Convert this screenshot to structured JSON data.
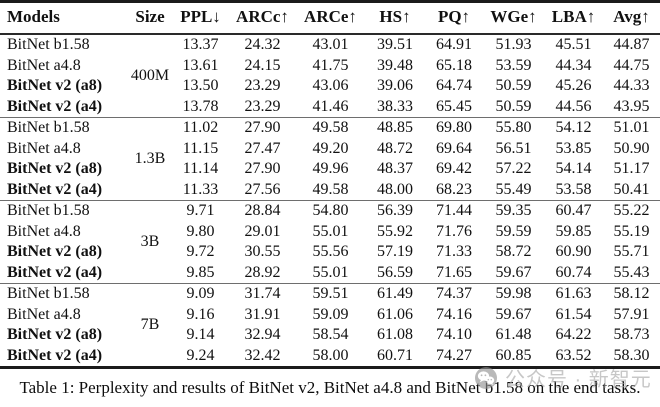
{
  "table": {
    "caption": "Table 1: Perplexity and results of BitNet v2, BitNet a4.8 and BitNet b1.58 on the end tasks.",
    "columns": [
      "Models",
      "Size",
      "PPL↓",
      "ARCc↑",
      "ARCe↑",
      "HS↑",
      "PQ↑",
      "WGe↑",
      "LBA↑",
      "Avg↑"
    ],
    "groups": [
      {
        "size": "400M",
        "rows": [
          {
            "model": "BitNet b1.58",
            "bold": false,
            "values": [
              "13.37",
              "24.32",
              "43.01",
              "39.51",
              "64.91",
              "51.93",
              "45.51",
              "44.87"
            ]
          },
          {
            "model": "BitNet a4.8",
            "bold": false,
            "values": [
              "13.61",
              "24.15",
              "41.75",
              "39.48",
              "65.18",
              "53.59",
              "44.34",
              "44.75"
            ]
          },
          {
            "model": "BitNet v2 (a8)",
            "bold": true,
            "values": [
              "13.50",
              "23.29",
              "43.06",
              "39.06",
              "64.74",
              "50.59",
              "45.26",
              "44.33"
            ]
          },
          {
            "model": "BitNet v2 (a4)",
            "bold": true,
            "values": [
              "13.78",
              "23.29",
              "41.46",
              "38.33",
              "65.45",
              "50.59",
              "44.56",
              "43.95"
            ]
          }
        ]
      },
      {
        "size": "1.3B",
        "rows": [
          {
            "model": "BitNet b1.58",
            "bold": false,
            "values": [
              "11.02",
              "27.90",
              "49.58",
              "48.85",
              "69.80",
              "55.80",
              "54.12",
              "51.01"
            ]
          },
          {
            "model": "BitNet a4.8",
            "bold": false,
            "values": [
              "11.15",
              "27.47",
              "49.20",
              "48.72",
              "69.64",
              "56.51",
              "53.85",
              "50.90"
            ]
          },
          {
            "model": "BitNet v2 (a8)",
            "bold": true,
            "values": [
              "11.14",
              "27.90",
              "49.96",
              "48.37",
              "69.42",
              "57.22",
              "54.14",
              "51.17"
            ]
          },
          {
            "model": "BitNet v2 (a4)",
            "bold": true,
            "values": [
              "11.33",
              "27.56",
              "49.58",
              "48.00",
              "68.23",
              "55.49",
              "53.58",
              "50.41"
            ]
          }
        ]
      },
      {
        "size": "3B",
        "rows": [
          {
            "model": "BitNet b1.58",
            "bold": false,
            "values": [
              "9.71",
              "28.84",
              "54.80",
              "56.39",
              "71.44",
              "59.35",
              "60.47",
              "55.22"
            ]
          },
          {
            "model": "BitNet a4.8",
            "bold": false,
            "values": [
              "9.80",
              "29.01",
              "55.01",
              "55.92",
              "71.76",
              "59.59",
              "59.85",
              "55.19"
            ]
          },
          {
            "model": "BitNet v2 (a8)",
            "bold": true,
            "values": [
              "9.72",
              "30.55",
              "55.56",
              "57.19",
              "71.33",
              "58.72",
              "60.90",
              "55.71"
            ]
          },
          {
            "model": "BitNet v2 (a4)",
            "bold": true,
            "values": [
              "9.85",
              "28.92",
              "55.01",
              "56.59",
              "71.65",
              "59.67",
              "60.74",
              "55.43"
            ]
          }
        ]
      },
      {
        "size": "7B",
        "rows": [
          {
            "model": "BitNet b1.58",
            "bold": false,
            "values": [
              "9.09",
              "31.74",
              "59.51",
              "61.49",
              "74.37",
              "59.98",
              "61.63",
              "58.12"
            ]
          },
          {
            "model": "BitNet a4.8",
            "bold": false,
            "values": [
              "9.16",
              "31.91",
              "59.09",
              "61.06",
              "74.16",
              "59.67",
              "61.54",
              "57.91"
            ]
          },
          {
            "model": "BitNet v2 (a8)",
            "bold": true,
            "values": [
              "9.14",
              "32.94",
              "58.54",
              "61.08",
              "74.10",
              "61.48",
              "64.22",
              "58.73"
            ]
          },
          {
            "model": "BitNet v2 (a4)",
            "bold": true,
            "values": [
              "9.24",
              "32.42",
              "58.00",
              "60.71",
              "74.27",
              "60.85",
              "63.52",
              "58.30"
            ]
          }
        ]
      }
    ]
  },
  "watermark": {
    "icon": "wechat-icon",
    "text": "公众号 · 新智元",
    "color": "#a6a6a6"
  }
}
